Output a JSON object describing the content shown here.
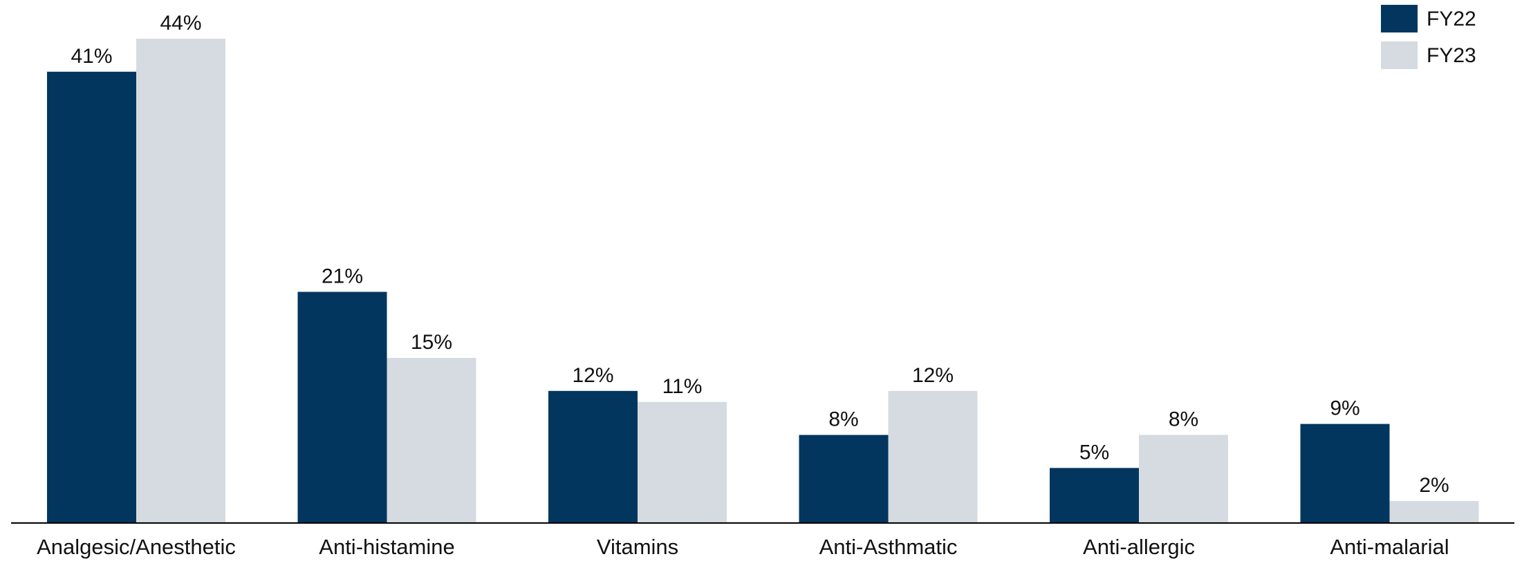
{
  "chart_data": {
    "type": "bar",
    "title": "",
    "xlabel": "",
    "ylabel": "",
    "ylim": [
      0,
      44
    ],
    "grid": false,
    "legend_position": "top-right",
    "categories": [
      "Analgesic/Anesthetic",
      "Anti-histamine",
      "Vitamins",
      "Anti-Asthmatic",
      "Anti-allergic",
      "Anti-malarial"
    ],
    "series": [
      {
        "name": "FY22",
        "color": "#02365F",
        "values": [
          41,
          21,
          12,
          8,
          5,
          9
        ],
        "labels": [
          "41%",
          "21%",
          "12%",
          "8%",
          "5%",
          "9%"
        ]
      },
      {
        "name": "FY23",
        "color": "#D5DBE0",
        "values": [
          44,
          15,
          11,
          12,
          8,
          2
        ],
        "labels": [
          "44%",
          "15%",
          "11%",
          "12%",
          "8%",
          "2%"
        ]
      }
    ]
  }
}
